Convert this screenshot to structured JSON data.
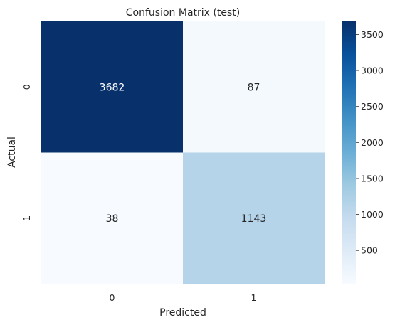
{
  "chart_data": {
    "type": "heatmap",
    "title": "Confusion Matrix (test)",
    "xlabel": "Predicted",
    "ylabel": "Actual",
    "x_categories": [
      "0",
      "1"
    ],
    "y_categories": [
      "0",
      "1"
    ],
    "values": [
      [
        3682,
        87
      ],
      [
        38,
        1143
      ]
    ],
    "cell_labels": [
      [
        "3682",
        "87"
      ],
      [
        "38",
        "1143"
      ]
    ],
    "colormap": "Blues",
    "color_range": [
      38,
      3682
    ],
    "colorbar_ticks": [
      500,
      1000,
      1500,
      2000,
      2500,
      3000,
      3500
    ],
    "colorbar_tick_labels": [
      "500",
      "1000",
      "1500",
      "2000",
      "2500",
      "3000",
      "3500"
    ],
    "colors": {
      "low": "#f7fbff",
      "high": "#08306b"
    }
  }
}
